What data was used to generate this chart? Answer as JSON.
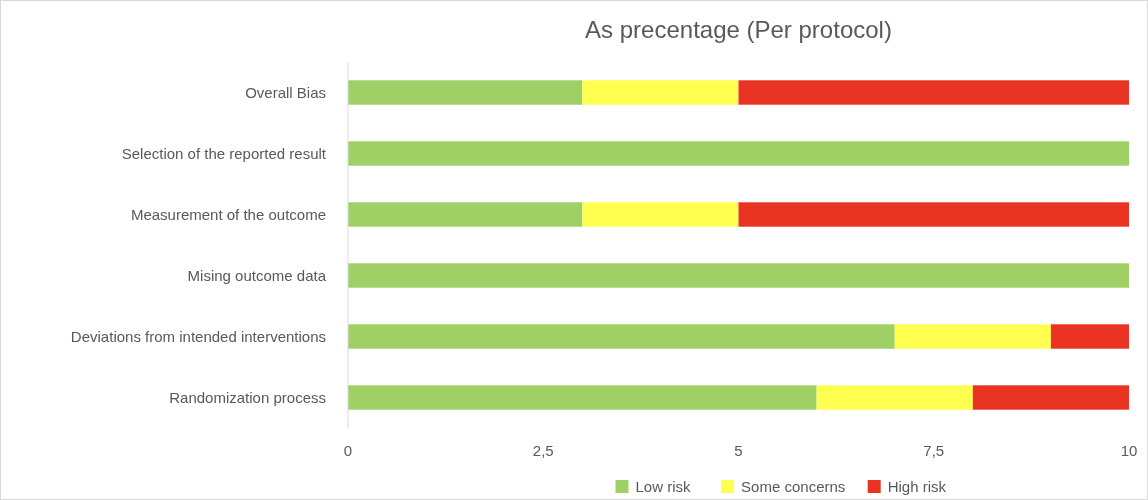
{
  "chart_data": {
    "type": "bar",
    "orientation": "horizontal",
    "stacked": true,
    "title": "As precentage (Per protocol)",
    "categories": [
      "Overall Bias",
      "Selection of the reported result",
      "Measurement of the outcome",
      "Mising outcome data",
      "Deviations from intended interventions",
      "Randomization process"
    ],
    "series": [
      {
        "name": "Low risk",
        "color": "#9fd066",
        "values": [
          3,
          10,
          3,
          10,
          7,
          6
        ]
      },
      {
        "name": "Some concerns",
        "color": "#ffff50",
        "values": [
          2,
          0,
          2,
          0,
          2,
          2
        ]
      },
      {
        "name": "High risk",
        "color": "#e93323",
        "values": [
          5,
          0,
          5,
          0,
          1,
          2
        ]
      }
    ],
    "xlim": [
      0,
      10
    ],
    "xticks": [
      0,
      {
        "value": 2.5,
        "label": "2,5"
      },
      5,
      {
        "value": 7.5,
        "label": "7,5"
      },
      10
    ],
    "grid": false,
    "legend": "bottom"
  }
}
